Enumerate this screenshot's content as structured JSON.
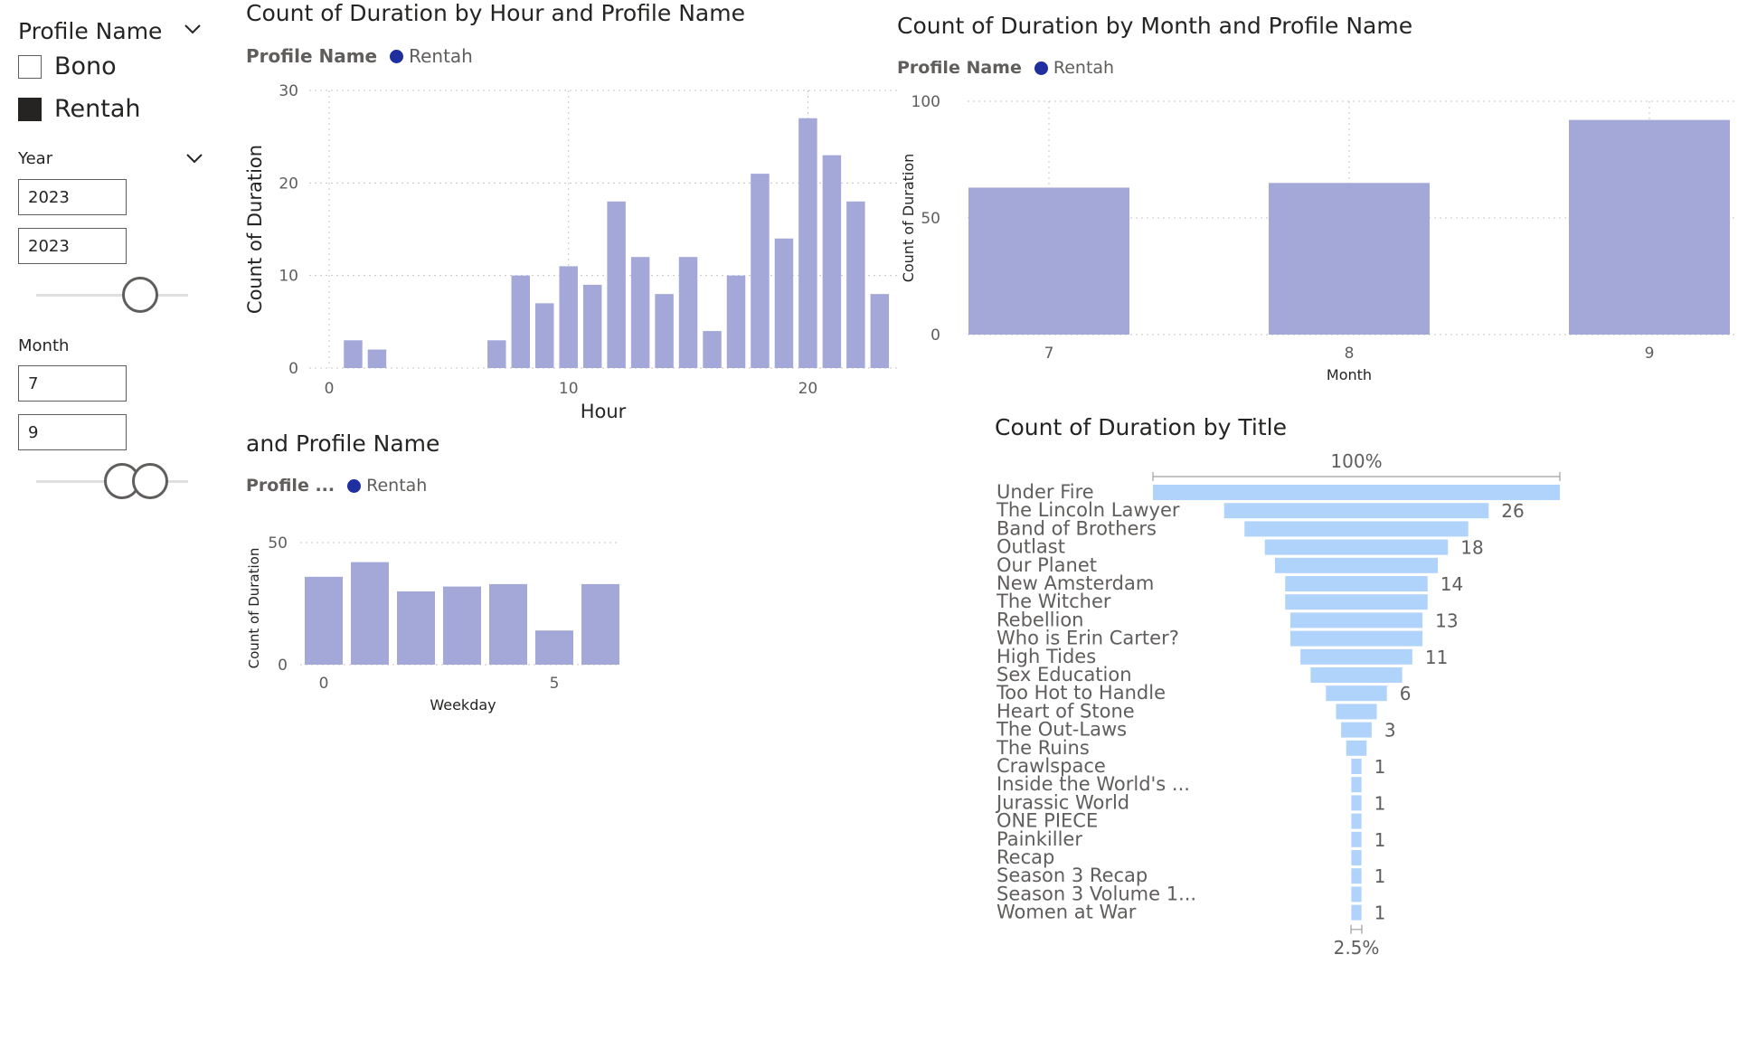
{
  "filters": {
    "profile": {
      "title": "Profile Name",
      "options": [
        {
          "label": "Bono",
          "checked": false
        },
        {
          "label": "Rentah",
          "checked": true
        }
      ]
    },
    "year": {
      "title": "Year",
      "from": "2023",
      "to": "2023"
    },
    "month": {
      "title": "Month",
      "from": "7",
      "to": "9"
    }
  },
  "colors": {
    "bar": "#a3a8d9",
    "funnel": "#b0d3fb",
    "legend_dot": "#1f2fa0",
    "grid": "#c8c6c4",
    "text": "#252423",
    "axis_text": "#605e5c"
  },
  "icons": [
    "chevron-down-icon",
    "checkbox-icon",
    "slider-handle-icon"
  ],
  "chart_data": [
    {
      "id": "hour",
      "type": "bar",
      "title": "Count of Duration by Hour and Profile Name",
      "legend_title": "Profile Name",
      "legend_items": [
        "Rentah"
      ],
      "xlabel": "Hour",
      "ylabel": "Count of Duration",
      "x": [
        1,
        2,
        7,
        8,
        9,
        10,
        11,
        12,
        13,
        14,
        15,
        16,
        17,
        18,
        19,
        20,
        21,
        22,
        23
      ],
      "values": [
        3,
        2,
        3,
        10,
        7,
        11,
        9,
        18,
        12,
        8,
        12,
        4,
        10,
        21,
        14,
        27,
        23,
        18,
        8
      ],
      "xlim": [
        0,
        23
      ],
      "ylim": [
        0,
        30
      ],
      "xticks": [
        0,
        10,
        20
      ],
      "yticks": [
        0,
        10,
        20,
        30
      ],
      "grid": true
    },
    {
      "id": "month",
      "type": "bar",
      "title": "Count of Duration by Month and Profile Name",
      "legend_title": "Profile Name",
      "legend_items": [
        "Rentah"
      ],
      "xlabel": "Month",
      "ylabel": "Count of Duration",
      "categories": [
        "7",
        "8",
        "9"
      ],
      "values": [
        63,
        65,
        92
      ],
      "ylim": [
        0,
        100
      ],
      "yticks": [
        0,
        50,
        100
      ],
      "grid": true
    },
    {
      "id": "weekday",
      "type": "bar",
      "title": "and Profile Name",
      "legend_title": "Profile ...",
      "legend_items": [
        "Rentah"
      ],
      "xlabel": "Weekday",
      "ylabel": "Count of Duration",
      "x": [
        0,
        1,
        2,
        3,
        4,
        5,
        6
      ],
      "values": [
        36,
        42,
        30,
        32,
        33,
        14,
        33
      ],
      "ylim": [
        0,
        50
      ],
      "xticks": [
        0,
        5
      ],
      "yticks": [
        0,
        50
      ],
      "grid": true
    },
    {
      "id": "title",
      "type": "bar",
      "subtype": "funnel",
      "title": "Count of Duration by Title",
      "top_label": "100%",
      "bottom_label": "2.5%",
      "categories": [
        "Under Fire",
        "The Lincoln Lawyer",
        "Band of Brothers",
        "Outlast",
        "Our Planet",
        "New Amsterdam",
        "The Witcher",
        "Rebellion",
        "Who is Erin Carter?",
        "High Tides",
        "Sex Education",
        "Too Hot to Handle",
        "Heart of Stone",
        "The Out-Laws",
        "The Ruins",
        "Crawlspace",
        "Inside the World's ...",
        "Jurassic World",
        "ONE PIECE",
        "Painkiller",
        "Recap",
        "Season 3 Recap",
        "Season 3 Volume 1...",
        "Women at War"
      ],
      "values": [
        40,
        26,
        22,
        18,
        16,
        14,
        14,
        13,
        13,
        11,
        9,
        6,
        4,
        3,
        2,
        1,
        1,
        1,
        1,
        1,
        1,
        1,
        1,
        1
      ],
      "data_labels": [
        "",
        "26",
        "",
        "18",
        "",
        "14",
        "",
        "13",
        "",
        "11",
        "",
        "6",
        "",
        "3",
        "",
        "1",
        "",
        "1",
        "",
        "1",
        "",
        "1",
        "",
        "1"
      ]
    }
  ]
}
